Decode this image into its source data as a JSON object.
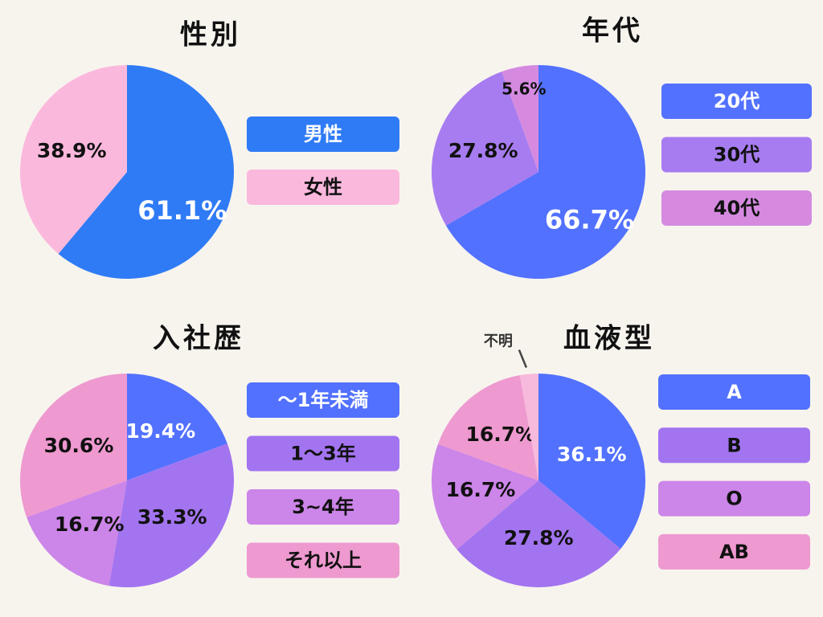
{
  "chart_data": [
    {
      "type": "pie",
      "title": "性別",
      "categories": [
        "男性",
        "女性"
      ],
      "values": [
        61.1,
        38.9
      ],
      "value_labels": [
        "61.1%",
        "38.9%"
      ],
      "colors": [
        "#2f7bf5",
        "#fbb8dd"
      ]
    },
    {
      "type": "pie",
      "title": "年代",
      "categories": [
        "20代",
        "30代",
        "40代"
      ],
      "values": [
        66.7,
        27.8,
        5.6
      ],
      "value_labels": [
        "66.7%",
        "27.8%",
        "5.6%"
      ],
      "colors": [
        "#5271ff",
        "#a77cf0",
        "#d58ae0"
      ]
    },
    {
      "type": "pie",
      "title": "入社歴",
      "categories": [
        "～1年未満",
        "1～3年",
        "3~4年",
        "それ以上"
      ],
      "values": [
        19.4,
        33.3,
        16.7,
        30.6
      ],
      "value_labels": [
        "19.4%",
        "33.3%",
        "16.7%",
        "30.6%"
      ],
      "colors": [
        "#5271ff",
        "#a374f0",
        "#cc85e8",
        "#ee99d0"
      ]
    },
    {
      "type": "pie",
      "title": "血液型",
      "categories": [
        "A",
        "B",
        "O",
        "AB",
        "不明"
      ],
      "values": [
        36.1,
        27.8,
        16.7,
        16.7,
        2.8
      ],
      "value_labels": [
        "36.1%",
        "27.8%",
        "16.7%",
        "16.7%",
        null
      ],
      "colors": [
        "#5271ff",
        "#a374f0",
        "#cc85e8",
        "#ee99d0",
        "#f7b9dc"
      ]
    }
  ]
}
